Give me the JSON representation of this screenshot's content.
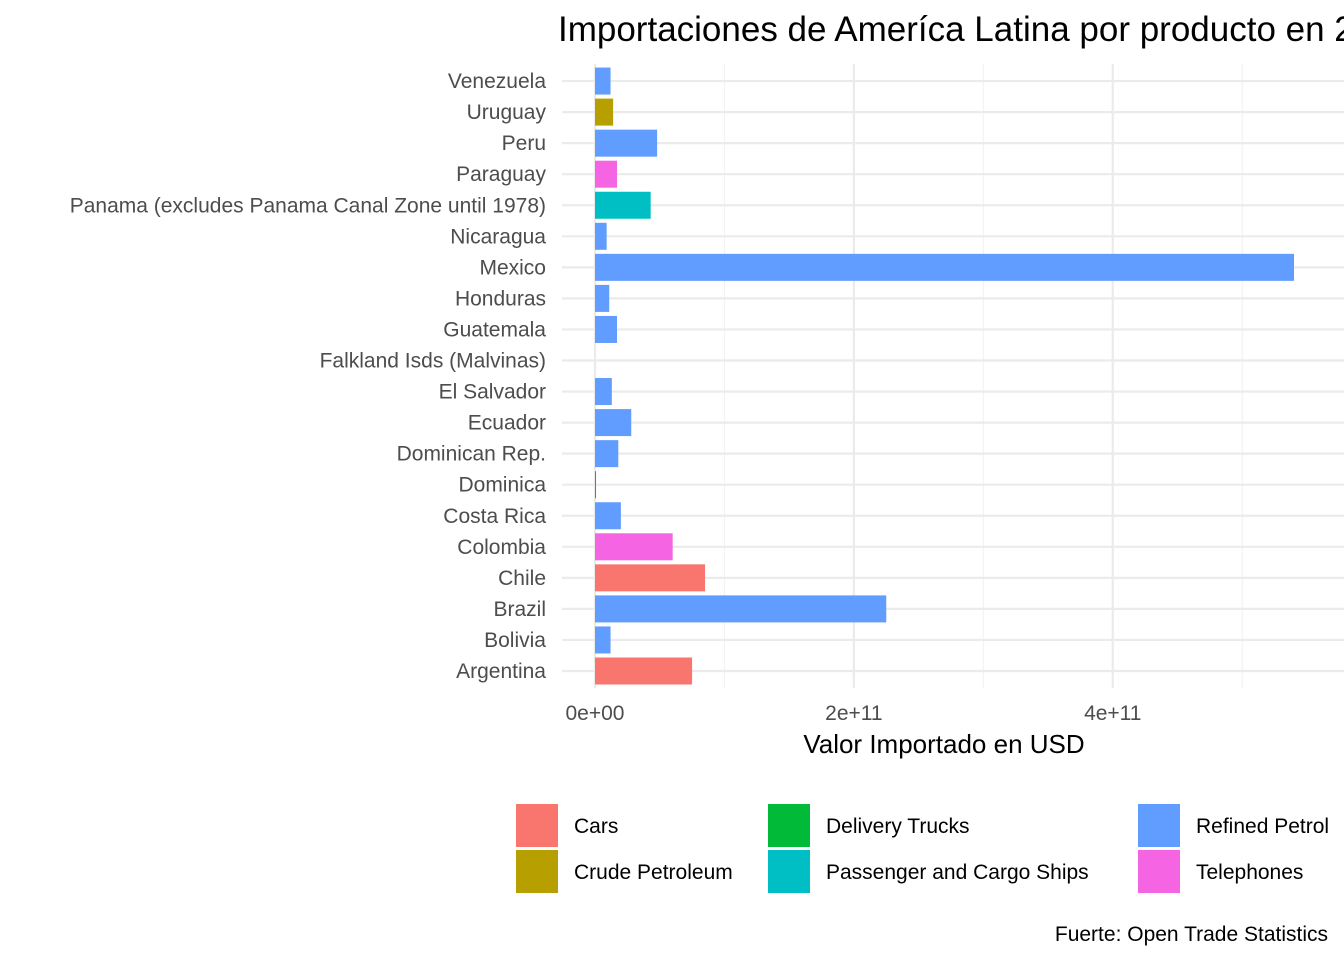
{
  "chart_data": {
    "type": "bar",
    "orientation": "horizontal",
    "title": "Importaciones de Ameríca Latina por producto en 2",
    "xlabel": "Valor Importado en USD",
    "ylabel": "",
    "caption": "Fuerte: Open Trade Statistics",
    "xlim": [
      0,
      540000000000
    ],
    "x_ticks": [
      {
        "value": 0,
        "label": "0e+00"
      },
      {
        "value": 200000000000,
        "label": "2e+11"
      },
      {
        "value": 400000000000,
        "label": "4e+11"
      }
    ],
    "x_minor_ticks": [
      100000000000,
      300000000000,
      500000000000
    ],
    "grid": true,
    "legend_position": "bottom",
    "legend": [
      {
        "label": "Cars",
        "color": "#F8766D"
      },
      {
        "label": "Crude Petroleum",
        "color": "#B79F00"
      },
      {
        "label": "Delivery Trucks",
        "color": "#00BA38"
      },
      {
        "label": "Passenger and Cargo Ships",
        "color": "#00BFC4"
      },
      {
        "label": "Refined Petrol",
        "color": "#619CFF"
      },
      {
        "label": "Telephones",
        "color": "#F564E3"
      }
    ],
    "categories": [
      "Argentina",
      "Bolivia",
      "Brazil",
      "Chile",
      "Colombia",
      "Costa Rica",
      "Dominica",
      "Dominican Rep.",
      "Ecuador",
      "El Salvador",
      "Falkland Isds (Malvinas)",
      "Guatemala",
      "Honduras",
      "Mexico",
      "Nicaragua",
      "Panama (excludes Panama Canal Zone until 1978)",
      "Paraguay",
      "Peru",
      "Uruguay",
      "Venezuela"
    ],
    "bars": [
      {
        "country": "Argentina",
        "product": "Cars",
        "value": 75000000000
      },
      {
        "country": "Bolivia",
        "product": "Refined Petrol",
        "value": 12000000000
      },
      {
        "country": "Brazil",
        "product": "Refined Petrol",
        "value": 225000000000
      },
      {
        "country": "Chile",
        "product": "Cars",
        "value": 85000000000
      },
      {
        "country": "Colombia",
        "product": "Telephones",
        "value": 60000000000
      },
      {
        "country": "Costa Rica",
        "product": "Refined Petrol",
        "value": 20000000000
      },
      {
        "country": "Dominica",
        "product": "Delivery Trucks",
        "value": 300000000
      },
      {
        "country": "Dominican Rep.",
        "product": "Refined Petrol",
        "value": 18000000000
      },
      {
        "country": "Ecuador",
        "product": "Refined Petrol",
        "value": 28000000000
      },
      {
        "country": "El Salvador",
        "product": "Refined Petrol",
        "value": 13000000000
      },
      {
        "country": "Falkland Isds (Malvinas)",
        "product": "Refined Petrol",
        "value": 0
      },
      {
        "country": "Guatemala",
        "product": "Refined Petrol",
        "value": 17000000000
      },
      {
        "country": "Honduras",
        "product": "Refined Petrol",
        "value": 11000000000
      },
      {
        "country": "Mexico",
        "product": "Refined Petrol",
        "value": 540000000000
      },
      {
        "country": "Nicaragua",
        "product": "Refined Petrol",
        "value": 9000000000
      },
      {
        "country": "Panama (excludes Panama Canal Zone until 1978)",
        "product": "Passenger and Cargo Ships",
        "value": 43000000000
      },
      {
        "country": "Paraguay",
        "product": "Telephones",
        "value": 17000000000
      },
      {
        "country": "Peru",
        "product": "Refined Petrol",
        "value": 48000000000
      },
      {
        "country": "Uruguay",
        "product": "Crude Petroleum",
        "value": 14000000000
      },
      {
        "country": "Venezuela",
        "product": "Refined Petrol",
        "value": 12000000000
      }
    ]
  }
}
